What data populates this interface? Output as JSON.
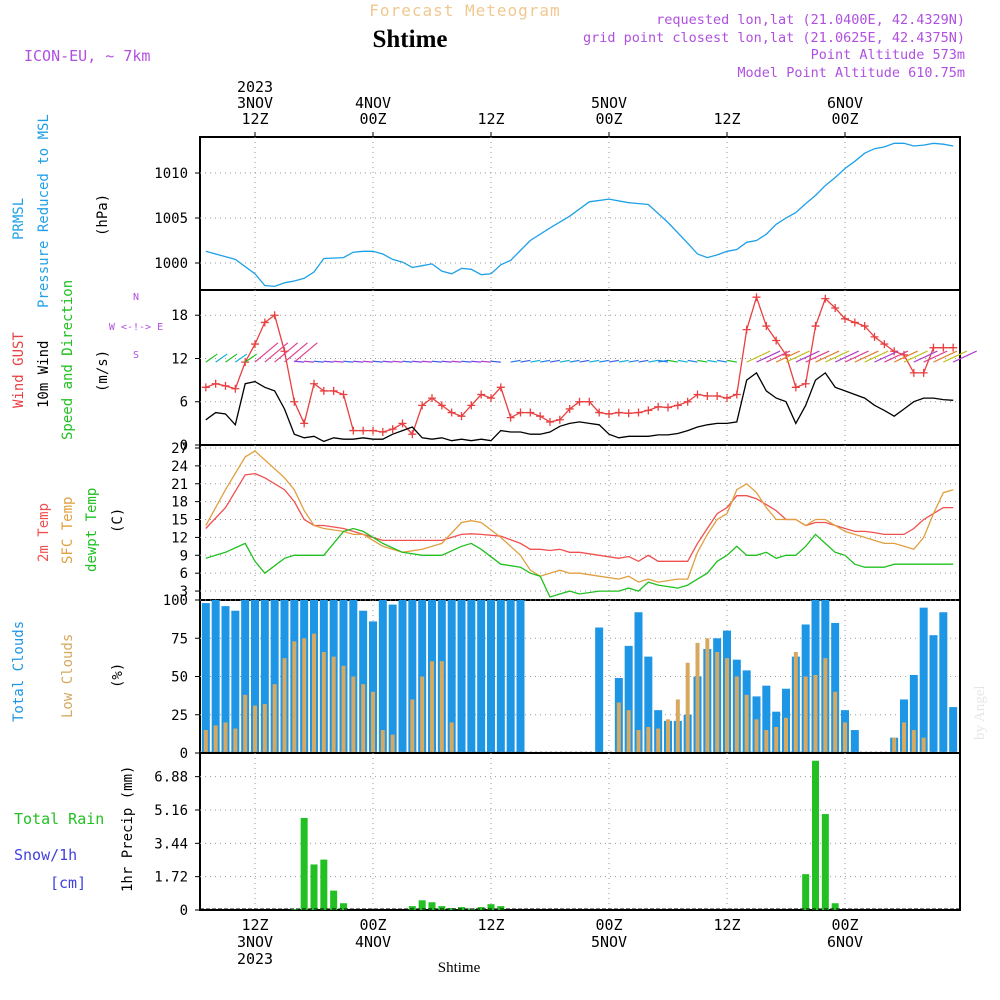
{
  "header": {
    "app_title": "Forecast Meteogram",
    "location": "Shtime",
    "model": "ICON-EU, ~ 7km",
    "requested": "requested lon,lat (21.0400E, 42.4329N)",
    "grid_point": "grid point closest lon,lat (21.0625E, 42.4375N)",
    "point_alt": "Point Altitude 573m",
    "model_alt": "Model Point Altitude 610.75m",
    "bottom_label": "Shtime",
    "watermark": "by Angel"
  },
  "colors": {
    "pressure": "#1ea0e8",
    "gust": "#e84040",
    "wind": "#000000",
    "temp2m": "#f05050",
    "sfc": "#e0a040",
    "dewpt": "#20c020",
    "total_clouds": "#1e96e6",
    "low_clouds": "#d6a860",
    "rain": "#22c022",
    "snow": "#4040e0",
    "meta": "#b050e0",
    "app_title": "#f0c890"
  },
  "top_axis": [
    {
      "l1": "2023",
      "l2": "3NOV",
      "l3": "12Z"
    },
    {
      "l1": "",
      "l2": "4NOV",
      "l3": "00Z"
    },
    {
      "l1": "",
      "l2": "",
      "l3": "12Z"
    },
    {
      "l1": "",
      "l2": "5NOV",
      "l3": "00Z"
    },
    {
      "l1": "",
      "l2": "",
      "l3": "12Z"
    },
    {
      "l1": "",
      "l2": "6NOV",
      "l3": "00Z"
    }
  ],
  "bottom_axis": [
    {
      "l1": "12Z",
      "l2": "3NOV",
      "l3": "2023"
    },
    {
      "l1": "00Z",
      "l2": "4NOV",
      "l3": ""
    },
    {
      "l1": "12Z",
      "l2": "",
      "l3": ""
    },
    {
      "l1": "00Z",
      "l2": "5NOV",
      "l3": ""
    },
    {
      "l1": "12Z",
      "l2": "",
      "l3": ""
    },
    {
      "l1": "00Z",
      "l2": "6NOV",
      "l3": ""
    }
  ],
  "chart_data": [
    {
      "type": "line",
      "panel": "pressure",
      "labels": [
        "PRMSL",
        "Pressure Reduced to MSL"
      ],
      "ylabel": "(hPa)",
      "x": [
        0,
        3,
        5,
        6,
        7,
        8,
        9,
        10,
        11,
        12,
        14,
        15,
        16,
        17,
        18,
        19,
        20,
        21,
        22,
        23,
        24,
        25,
        26,
        27,
        28,
        29,
        30,
        31,
        33,
        35,
        37,
        39,
        41,
        43,
        45,
        47,
        49,
        50,
        51,
        52,
        53,
        54,
        55,
        56,
        57,
        58,
        59,
        60,
        61,
        62,
        63,
        64,
        65,
        66,
        67,
        68,
        69,
        70,
        71,
        72,
        73,
        74,
        75,
        76
      ],
      "values": [
        1001.3,
        1000.4,
        998.8,
        997.5,
        997.4,
        997.8,
        998.0,
        998.3,
        999.0,
        1000.5,
        1000.6,
        1001.2,
        1001.3,
        1001.3,
        1001.0,
        1000.4,
        1000.1,
        999.5,
        999.7,
        999.9,
        999.1,
        998.8,
        999.4,
        999.3,
        998.7,
        998.8,
        999.8,
        1000.3,
        1002.5,
        1003.9,
        1005.2,
        1006.8,
        1007.1,
        1006.7,
        1006.5,
        1004.5,
        1002.2,
        1001.0,
        1000.6,
        1000.9,
        1001.3,
        1001.5,
        1002.3,
        1002.5,
        1003.2,
        1004.3,
        1005.0,
        1005.6,
        1006.6,
        1007.5,
        1008.6,
        1009.5,
        1010.5,
        1011.3,
        1012.2,
        1012.7,
        1012.9,
        1013.3,
        1013.3,
        1013.0,
        1013.1,
        1013.3,
        1013.2,
        1013.0
      ],
      "ylim": [
        997,
        1014
      ],
      "yticks": [
        "1000",
        "1005",
        "1010"
      ]
    },
    {
      "type": "line",
      "panel": "wind",
      "labels": [
        "Wind GUST",
        "10m Wind",
        "Speed and Direction"
      ],
      "ylabel": "(m/s)",
      "compass": [
        "N",
        "W <-!-> E",
        "S"
      ],
      "x": [
        0,
        1,
        2,
        3,
        4,
        5,
        6,
        7,
        8,
        9,
        10,
        11,
        12,
        13,
        14,
        15,
        16,
        17,
        18,
        19,
        20,
        21,
        22,
        23,
        24,
        25,
        26,
        27,
        28,
        29,
        30,
        31,
        32,
        33,
        34,
        35,
        36,
        37,
        38,
        39,
        40,
        41,
        42,
        43,
        44,
        45,
        46,
        47,
        48,
        49,
        50,
        51,
        52,
        53,
        54,
        55,
        56,
        57,
        58,
        59,
        60,
        61,
        62,
        63,
        64,
        65,
        66,
        67,
        68,
        69,
        70,
        71,
        72,
        73,
        74,
        75,
        76
      ],
      "gust": [
        8.0,
        8.5,
        8.2,
        7.8,
        11.5,
        14.0,
        17.0,
        18.0,
        13.0,
        6.0,
        3.0,
        8.5,
        7.5,
        7.5,
        7.0,
        2.0,
        2.0,
        2.0,
        1.8,
        2.2,
        3.0,
        1.5,
        5.5,
        6.5,
        5.5,
        4.5,
        4.0,
        5.5,
        7.0,
        6.5,
        8.0,
        3.8,
        4.5,
        4.5,
        4.0,
        3.2,
        3.5,
        5.0,
        6.0,
        6.0,
        4.5,
        4.3,
        4.5,
        4.4,
        4.5,
        4.8,
        5.3,
        5.2,
        5.5,
        6.0,
        7.0,
        6.8,
        6.8,
        6.5,
        7.0,
        16.0,
        20.5,
        16.5,
        14.5,
        12.5,
        8.0,
        8.5,
        16.5,
        20.3,
        19.0,
        17.5,
        17.0,
        16.5,
        15.0,
        14.0,
        13.0,
        12.5,
        10.0,
        10.0,
        13.5,
        13.5,
        13.5
      ],
      "speed": [
        3.5,
        4.5,
        4.3,
        2.8,
        8.5,
        8.8,
        8.0,
        7.5,
        5.0,
        1.5,
        1.0,
        1.2,
        0.5,
        1.0,
        0.8,
        0.8,
        1.0,
        0.8,
        0.8,
        1.5,
        2.0,
        2.5,
        1.0,
        0.8,
        1.0,
        0.6,
        0.8,
        0.6,
        0.8,
        0.6,
        2.0,
        1.8,
        1.8,
        1.5,
        1.5,
        1.8,
        2.6,
        3.0,
        3.2,
        3.0,
        2.8,
        1.5,
        1.0,
        1.2,
        1.2,
        1.2,
        1.4,
        1.4,
        1.6,
        2.0,
        2.5,
        2.8,
        3.0,
        3.0,
        3.2,
        9.0,
        10.0,
        7.5,
        6.5,
        6.0,
        3.0,
        5.5,
        9.0,
        10.0,
        8.0,
        7.5,
        7.0,
        6.5,
        5.5,
        4.8,
        4.0,
        5.0,
        6.0,
        6.5,
        6.5,
        6.3,
        6.2
      ],
      "ylim": [
        0,
        21.5
      ],
      "yticks": [
        "0",
        "6",
        "12",
        "18"
      ]
    },
    {
      "type": "line",
      "panel": "temperature",
      "labels": [
        "2m Temp",
        "SFC Temp",
        "dewpt Temp"
      ],
      "ylabel": "(C)",
      "x": [
        0,
        2,
        4,
        5,
        6,
        8,
        9,
        10,
        11,
        12,
        14,
        15,
        16,
        18,
        20,
        22,
        24,
        26,
        27,
        28,
        30,
        32,
        33,
        34,
        35,
        36,
        37,
        38,
        40,
        42,
        43,
        44,
        45,
        46,
        48,
        49,
        50,
        51,
        52,
        53,
        54,
        55,
        56,
        57,
        58,
        59,
        60,
        61,
        62,
        63,
        64,
        65,
        66,
        67,
        68,
        69,
        70,
        71,
        72,
        73,
        74,
        75,
        76
      ],
      "temp2m": [
        13.5,
        17.0,
        22.5,
        22.7,
        22.0,
        20.0,
        18.0,
        15.0,
        14.0,
        14.0,
        13.5,
        13.0,
        12.5,
        11.5,
        11.5,
        11.5,
        11.5,
        12.5,
        12.6,
        12.5,
        12.2,
        11.0,
        10.0,
        10.0,
        9.8,
        10.0,
        9.5,
        9.5,
        9.0,
        8.5,
        8.8,
        8.0,
        9.0,
        8.0,
        8.0,
        8.0,
        11.0,
        13.5,
        16.0,
        17.0,
        19.0,
        19.0,
        18.5,
        17.5,
        16.5,
        15.0,
        15.0,
        14.0,
        14.5,
        14.5,
        14.0,
        13.5,
        13.0,
        13.0,
        12.8,
        12.5,
        12.5,
        12.5,
        13.5,
        15.0,
        16.0,
        17.0,
        17.0
      ],
      "sfc": [
        14.0,
        20.0,
        25.5,
        26.5,
        25.0,
        22.0,
        20.0,
        16.5,
        14.0,
        13.5,
        13.0,
        12.5,
        12.5,
        10.5,
        9.5,
        10.0,
        11.0,
        14.5,
        14.8,
        14.5,
        12.0,
        9.0,
        6.5,
        5.5,
        6.0,
        6.5,
        6.0,
        6.0,
        5.5,
        5.0,
        5.5,
        4.5,
        5.0,
        4.5,
        5.0,
        5.0,
        9.5,
        12.5,
        15.0,
        16.0,
        20.0,
        21.0,
        19.5,
        17.0,
        15.0,
        15.0,
        15.0,
        14.0,
        15.0,
        15.0,
        14.0,
        13.0,
        12.5,
        12.0,
        11.5,
        11.0,
        11.0,
        10.5,
        10.0,
        12.0,
        16.0,
        19.5,
        20.0
      ],
      "dewpt": [
        8.5,
        9.5,
        11.0,
        8.0,
        6.0,
        8.5,
        9.0,
        9.0,
        9.0,
        9.0,
        13.0,
        13.5,
        13.0,
        11.0,
        9.5,
        9.0,
        9.0,
        10.5,
        11.0,
        10.0,
        7.5,
        7.0,
        6.0,
        5.5,
        2.0,
        2.5,
        3.0,
        2.5,
        3.0,
        3.0,
        3.5,
        3.0,
        4.5,
        4.0,
        3.5,
        4.0,
        5.0,
        6.0,
        8.0,
        9.0,
        10.5,
        9.0,
        9.0,
        9.5,
        8.5,
        9.0,
        9.0,
        10.5,
        12.5,
        11.0,
        9.5,
        9.0,
        7.5,
        7.0,
        7.0,
        7.0,
        7.5,
        7.5,
        7.5,
        7.5,
        7.5,
        7.5,
        7.5
      ],
      "ylim": [
        1.5,
        27.5
      ],
      "yticks": [
        "3",
        "6",
        "9",
        "12",
        "15",
        "18",
        "21",
        "24",
        "27"
      ]
    },
    {
      "type": "bar",
      "panel": "clouds",
      "labels": [
        "Total Clouds",
        "Low Clouds"
      ],
      "ylabel": "(%)",
      "x": [
        0,
        1,
        2,
        3,
        4,
        5,
        6,
        7,
        8,
        9,
        10,
        11,
        12,
        13,
        14,
        15,
        16,
        17,
        18,
        19,
        20,
        21,
        22,
        23,
        24,
        25,
        26,
        27,
        28,
        29,
        30,
        31,
        32,
        33,
        34,
        35,
        36,
        37,
        38,
        39,
        40,
        41,
        42,
        43,
        44,
        45,
        46,
        47,
        48,
        49,
        50,
        51,
        52,
        53,
        54,
        55,
        56,
        57,
        58,
        59,
        60,
        61,
        62,
        63,
        64,
        65,
        66,
        67,
        68,
        69,
        70,
        71,
        72,
        73,
        74,
        75,
        76
      ],
      "total": [
        98,
        100,
        96,
        93,
        100,
        100,
        100,
        100,
        100,
        100,
        100,
        100,
        100,
        100,
        100,
        100,
        93,
        86,
        100,
        97,
        100,
        100,
        100,
        100,
        100,
        100,
        100,
        100,
        100,
        100,
        100,
        100,
        100,
        0,
        0,
        0,
        0,
        0,
        0,
        0,
        82,
        0,
        49,
        70,
        92,
        63,
        28,
        21,
        21,
        25,
        50,
        68,
        75,
        80,
        61,
        54,
        37,
        44,
        27,
        42,
        63,
        84,
        100,
        100,
        85,
        28,
        15,
        0,
        0,
        0,
        10,
        35,
        51,
        95,
        77,
        92,
        30
      ],
      "low": [
        15,
        18,
        20,
        16,
        38,
        31,
        32,
        45,
        62,
        73,
        75,
        78,
        66,
        63,
        57,
        50,
        45,
        40,
        15,
        12,
        0,
        35,
        50,
        60,
        60,
        20,
        0,
        0,
        0,
        0,
        0,
        0,
        0,
        0,
        0,
        0,
        0,
        0,
        0,
        0,
        0,
        0,
        33,
        28,
        15,
        17,
        16,
        22,
        35,
        59,
        72,
        75,
        66,
        62,
        50,
        38,
        22,
        15,
        17,
        23,
        66,
        50,
        51,
        62,
        40,
        20,
        0,
        0,
        0,
        0,
        10,
        20,
        15,
        10,
        0,
        0,
        0
      ],
      "ylim": [
        0,
        100
      ],
      "yticks": [
        "0",
        "25",
        "50",
        "75",
        "100"
      ]
    },
    {
      "type": "bar",
      "panel": "precip",
      "labels": [
        "Total Rain",
        "Snow/1h",
        "[cm]"
      ],
      "ylabel": "1hr Precip (mm)",
      "x": [
        9,
        10,
        11,
        12,
        13,
        14,
        21,
        22,
        23,
        24,
        25,
        26,
        27,
        28,
        29,
        30,
        61,
        62,
        63,
        64
      ],
      "values": [
        0.05,
        4.75,
        2.35,
        2.6,
        1.0,
        0.35,
        0.2,
        0.5,
        0.4,
        0.2,
        0.1,
        0.15,
        0.08,
        0.15,
        0.3,
        0.2,
        1.85,
        7.7,
        4.95,
        0.35
      ],
      "ylim": [
        0,
        8.1
      ],
      "yticks": [
        "0",
        "1.72",
        "3.44",
        "5.16",
        "6.88"
      ]
    }
  ]
}
